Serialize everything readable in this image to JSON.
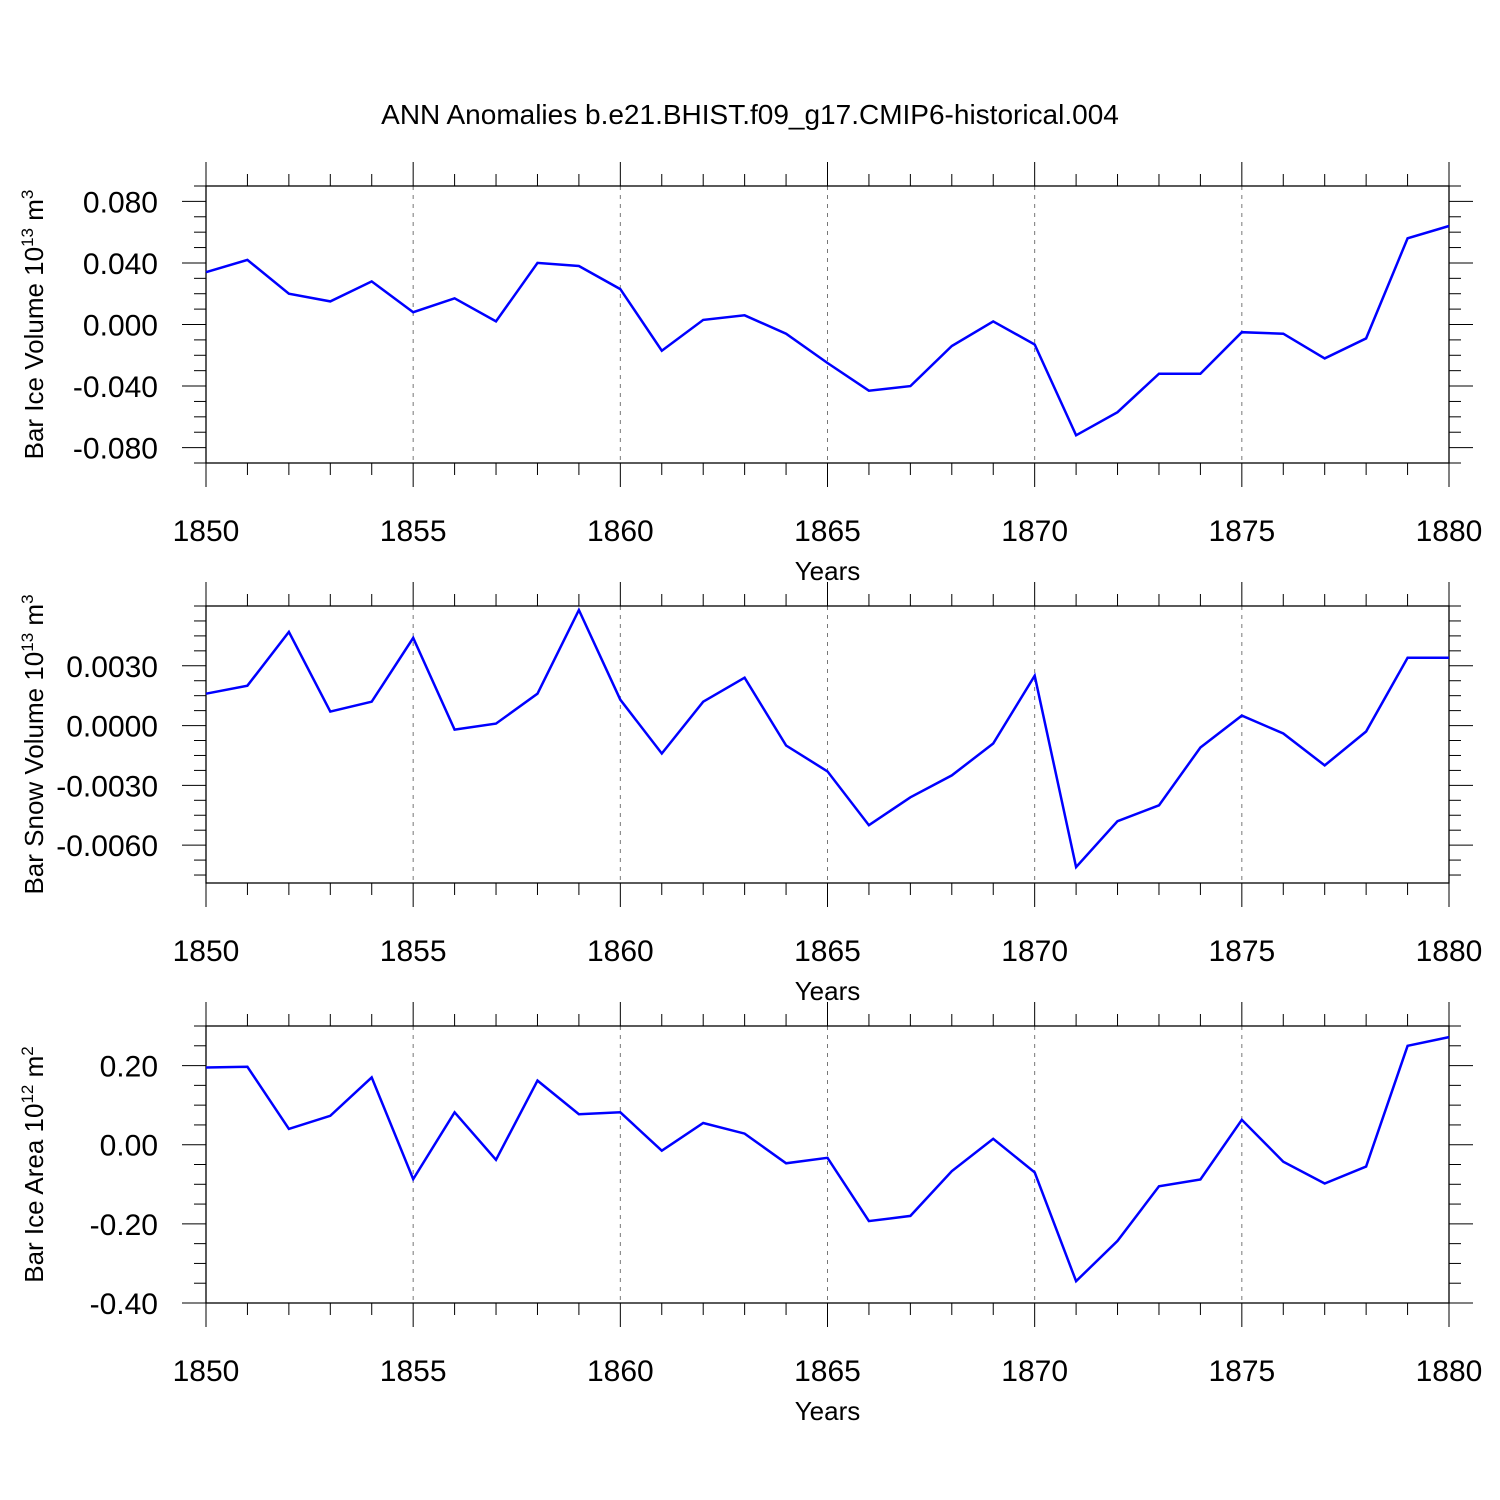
{
  "chart_data": {
    "title": "ANN Anomalies b.e21.BHIST.f09_g17.CMIP6-historical.004",
    "panels": [
      {
        "type": "line",
        "ylabel": "Bar Ice Volume 10",
        "ylabel_sup": "13",
        "ylabel_unit": " m",
        "ylabel_unit_sup": "3",
        "xlabel": "Years",
        "xlim": [
          1850,
          1880
        ],
        "ylim": [
          -0.09,
          0.09
        ],
        "x_ticks": [
          "1850",
          "1855",
          "1860",
          "1865",
          "1870",
          "1875",
          "1880"
        ],
        "y_ticks": [
          {
            "value": 0.08,
            "label": "0.080"
          },
          {
            "value": 0.04,
            "label": "0.040"
          },
          {
            "value": 0.0,
            "label": "0.000"
          },
          {
            "value": -0.04,
            "label": "-0.040"
          },
          {
            "value": -0.08,
            "label": "-0.080"
          }
        ],
        "y_minor_step": 0.01,
        "grid_x": true,
        "color": "#0000ff",
        "x": [
          1850,
          1851,
          1852,
          1853,
          1854,
          1855,
          1856,
          1857,
          1858,
          1859,
          1860,
          1861,
          1862,
          1863,
          1864,
          1865,
          1866,
          1867,
          1868,
          1869,
          1870,
          1871,
          1872,
          1873,
          1874,
          1875,
          1876,
          1877,
          1878,
          1879,
          1880
        ],
        "y": [
          0.034,
          0.042,
          0.02,
          0.015,
          0.028,
          0.008,
          0.017,
          0.002,
          0.04,
          0.038,
          0.023,
          -0.017,
          0.003,
          0.006,
          -0.006,
          -0.025,
          -0.043,
          -0.04,
          -0.014,
          0.002,
          -0.013,
          -0.072,
          -0.057,
          -0.032,
          -0.032,
          -0.005,
          -0.006,
          -0.022,
          -0.009,
          0.056,
          0.064
        ]
      },
      {
        "type": "line",
        "ylabel": "Bar Snow Volume 10",
        "ylabel_sup": "13",
        "ylabel_unit": " m",
        "ylabel_unit_sup": "3",
        "xlabel": "Years",
        "xlim": [
          1850,
          1880
        ],
        "ylim": [
          -0.0079,
          0.006
        ],
        "x_ticks": [
          "1850",
          "1855",
          "1860",
          "1865",
          "1870",
          "1875",
          "1880"
        ],
        "y_ticks": [
          {
            "value": 0.003,
            "label": "0.0030"
          },
          {
            "value": 0.0,
            "label": "0.0000"
          },
          {
            "value": -0.003,
            "label": "-0.0030"
          },
          {
            "value": -0.006,
            "label": "-0.0060"
          }
        ],
        "y_minor_step": 0.00075,
        "grid_x": true,
        "color": "#0000ff",
        "x": [
          1850,
          1851,
          1852,
          1853,
          1854,
          1855,
          1856,
          1857,
          1858,
          1859,
          1860,
          1861,
          1862,
          1863,
          1864,
          1865,
          1866,
          1867,
          1868,
          1869,
          1870,
          1871,
          1872,
          1873,
          1874,
          1875,
          1876,
          1877,
          1878,
          1879,
          1880
        ],
        "y": [
          0.0016,
          0.002,
          0.0047,
          0.0007,
          0.0012,
          0.0044,
          -0.0002,
          0.0001,
          0.0016,
          0.0058,
          0.0013,
          -0.0014,
          0.0012,
          0.0024,
          -0.001,
          -0.0023,
          -0.005,
          -0.0036,
          -0.0025,
          -0.0009,
          0.0025,
          -0.0071,
          -0.0048,
          -0.004,
          -0.0011,
          0.0005,
          -0.0004,
          -0.002,
          -0.0003,
          0.0034,
          0.0034
        ]
      },
      {
        "type": "line",
        "ylabel": "Bar Ice Area 10",
        "ylabel_sup": "12",
        "ylabel_unit": " m",
        "ylabel_unit_sup": "2",
        "xlabel": "Years",
        "xlim": [
          1850,
          1880
        ],
        "ylim": [
          -0.4,
          0.3
        ],
        "x_ticks": [
          "1850",
          "1855",
          "1860",
          "1865",
          "1870",
          "1875",
          "1880"
        ],
        "y_ticks": [
          {
            "value": 0.2,
            "label": "0.20"
          },
          {
            "value": 0.0,
            "label": "0.00"
          },
          {
            "value": -0.2,
            "label": "-0.20"
          },
          {
            "value": -0.4,
            "label": "-0.40"
          }
        ],
        "y_minor_step": 0.05,
        "grid_x": true,
        "color": "#0000ff",
        "x": [
          1850,
          1851,
          1852,
          1853,
          1854,
          1855,
          1856,
          1857,
          1858,
          1859,
          1860,
          1861,
          1862,
          1863,
          1864,
          1865,
          1866,
          1867,
          1868,
          1869,
          1870,
          1871,
          1872,
          1873,
          1874,
          1875,
          1876,
          1877,
          1878,
          1879,
          1880
        ],
        "y": [
          0.195,
          0.197,
          0.04,
          0.073,
          0.17,
          -0.087,
          0.082,
          -0.038,
          0.162,
          0.077,
          0.082,
          -0.015,
          0.055,
          0.028,
          -0.047,
          -0.033,
          -0.193,
          -0.18,
          -0.067,
          0.015,
          -0.07,
          -0.345,
          -0.243,
          -0.105,
          -0.088,
          0.063,
          -0.043,
          -0.098,
          -0.055,
          0.25,
          0.272
        ]
      }
    ]
  }
}
